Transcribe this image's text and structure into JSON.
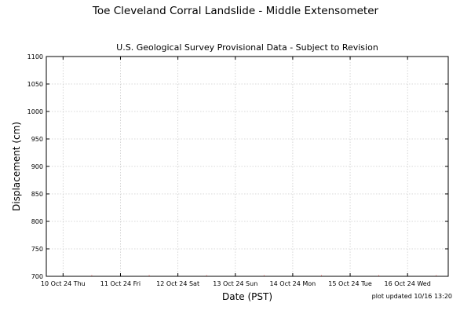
{
  "title": "Toe Cleveland Corral Landslide - Middle Extensometer",
  "subtitle": "U.S. Geological Survey Provisional Data - Subject to Revision",
  "footnote": "plot updated 10/16 13:20",
  "chart_data": {
    "type": "line",
    "xlabel": "Date (PST)",
    "ylabel": "Displacement (cm)",
    "xlim": [
      "2024-10-09T17:00",
      "2024-10-16T17:00"
    ],
    "ylim": [
      700,
      1100
    ],
    "yticks": [
      700,
      750,
      800,
      850,
      900,
      950,
      1000,
      1050,
      1100
    ],
    "xticks": [
      {
        "t": "2024-10-10T00:00",
        "label": "10 Oct 24 Thu"
      },
      {
        "t": "2024-10-11T00:00",
        "label": "11 Oct 24 Fri"
      },
      {
        "t": "2024-10-12T00:00",
        "label": "12 Oct 24 Sat"
      },
      {
        "t": "2024-10-13T00:00",
        "label": "13 Oct 24 Sun"
      },
      {
        "t": "2024-10-14T00:00",
        "label": "14 Oct 24 Mon"
      },
      {
        "t": "2024-10-15T00:00",
        "label": "15 Oct 24 Tue"
      },
      {
        "t": "2024-10-16T00:00",
        "label": "16 Oct 24 Wed"
      }
    ],
    "minor_xticks": [
      "2024-10-10T12:00",
      "2024-10-11T12:00",
      "2024-10-12T12:00",
      "2024-10-13T12:00",
      "2024-10-14T12:00",
      "2024-10-15T12:00",
      "2024-10-16T12:00"
    ],
    "grid": true,
    "series": []
  },
  "colors": {
    "grid": "#cccccc",
    "frame": "#000000",
    "minor_tick": "#ff9999"
  }
}
